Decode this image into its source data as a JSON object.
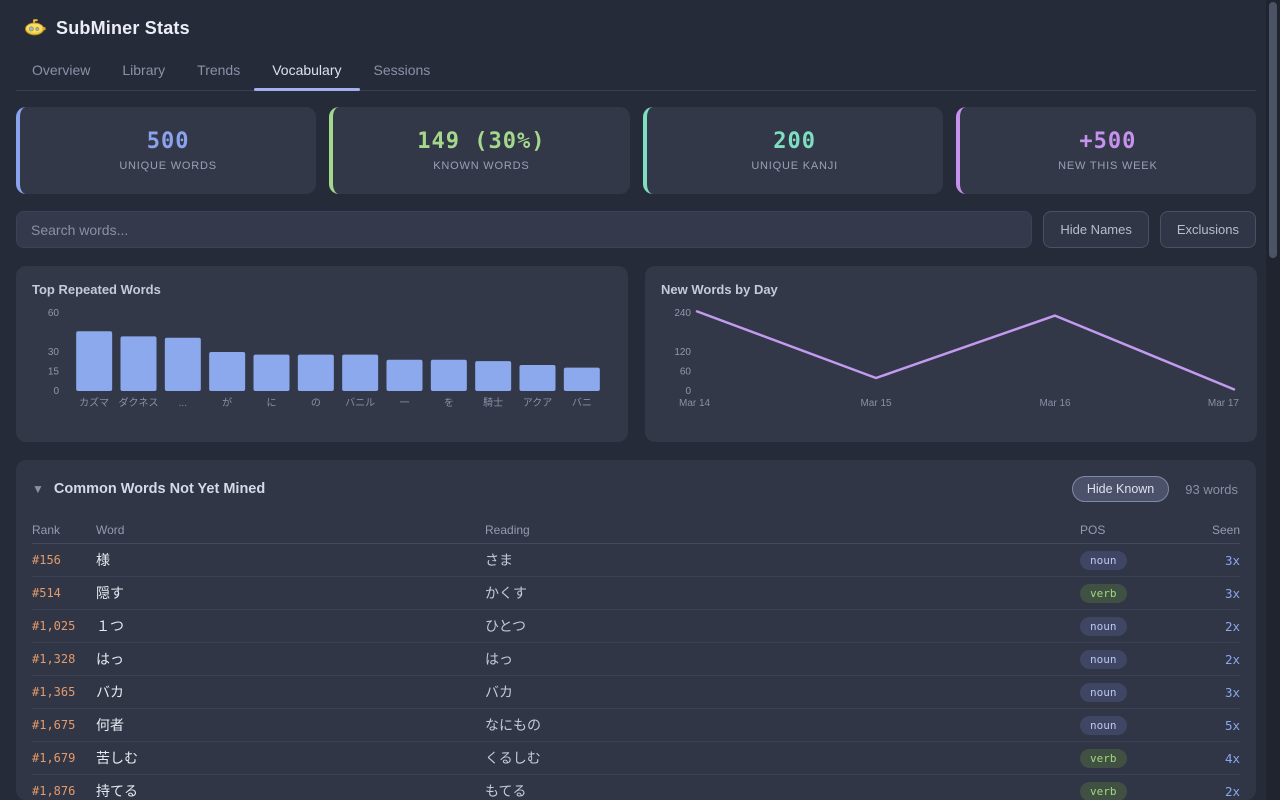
{
  "app": {
    "title": "SubMiner Stats",
    "logo": "submarine-icon"
  },
  "tabs": [
    {
      "label": "Overview",
      "active": false
    },
    {
      "label": "Library",
      "active": false
    },
    {
      "label": "Trends",
      "active": false
    },
    {
      "label": "Vocabulary",
      "active": true
    },
    {
      "label": "Sessions",
      "active": false
    }
  ],
  "stat_cards": [
    {
      "value": "500",
      "label": "UNIQUE WORDS",
      "color": "#8aa3ec"
    },
    {
      "value": "149 (30%)",
      "label": "KNOWN WORDS",
      "color": "#a4d88c"
    },
    {
      "value": "200",
      "label": "UNIQUE KANJI",
      "color": "#7edec2"
    },
    {
      "value": "+500",
      "label": "NEW THIS WEEK",
      "color": "#c792ee"
    }
  ],
  "search": {
    "placeholder": "Search words...",
    "value": ""
  },
  "toolbar_buttons": [
    {
      "label": "Hide Names"
    },
    {
      "label": "Exclusions"
    }
  ],
  "chart_data": [
    {
      "type": "bar",
      "title": "Top Repeated Words",
      "categories": [
        "カズマ",
        "ダクネス",
        "...",
        "が",
        "に",
        "の",
        "バニル",
        "一",
        "を",
        "騎士",
        "アクア",
        "バニ"
      ],
      "values": [
        46,
        42,
        41,
        30,
        28,
        28,
        28,
        24,
        24,
        23,
        20,
        18
      ],
      "yticks": [
        0,
        15,
        30,
        60
      ],
      "ylim": [
        0,
        60
      ],
      "xlabel": "",
      "ylabel": "",
      "grid": false,
      "legend": false,
      "bar_color": "#8ca9ed"
    },
    {
      "type": "line",
      "title": "New Words by Day",
      "x": [
        "Mar 14",
        "Mar 15",
        "Mar 16",
        "Mar 17"
      ],
      "values": [
        245,
        40,
        232,
        5
      ],
      "yticks": [
        0,
        60,
        120,
        240
      ],
      "ylim": [
        0,
        255
      ],
      "xlabel": "",
      "ylabel": "",
      "grid": false,
      "legend": false,
      "line_color": "#c49af0"
    }
  ],
  "table": {
    "collapse_icon": "▼",
    "title": "Common Words Not Yet Mined",
    "hide_known_label": "Hide Known",
    "word_count": "93 words",
    "columns": [
      "Rank",
      "Word",
      "Reading",
      "POS",
      "Seen"
    ],
    "rows": [
      {
        "rank": "#156",
        "word": "様",
        "reading": "さま",
        "pos": "noun",
        "seen": "3x"
      },
      {
        "rank": "#514",
        "word": "隠す",
        "reading": "かくす",
        "pos": "verb",
        "seen": "3x"
      },
      {
        "rank": "#1,025",
        "word": "１つ",
        "reading": "ひとつ",
        "pos": "noun",
        "seen": "2x"
      },
      {
        "rank": "#1,328",
        "word": "はっ",
        "reading": "はっ",
        "pos": "noun",
        "seen": "2x"
      },
      {
        "rank": "#1,365",
        "word": "バカ",
        "reading": "バカ",
        "pos": "noun",
        "seen": "3x"
      },
      {
        "rank": "#1,675",
        "word": "何者",
        "reading": "なにもの",
        "pos": "noun",
        "seen": "5x"
      },
      {
        "rank": "#1,679",
        "word": "苦しむ",
        "reading": "くるしむ",
        "pos": "verb",
        "seen": "4x"
      },
      {
        "rank": "#1,876",
        "word": "持てる",
        "reading": "もてる",
        "pos": "verb",
        "seen": "2x"
      }
    ]
  },
  "colors": {
    "background": "#262b3a",
    "card": "#323848",
    "accent_blue": "#8aa3ec",
    "accent_green": "#a4d88c",
    "accent_teal": "#7edec2",
    "accent_purple": "#c792ee",
    "bar_fill": "#8ca9ed",
    "line_stroke": "#c49af0",
    "rank_orange": "#e39a6c",
    "tab_underline": "#a5aff0"
  }
}
